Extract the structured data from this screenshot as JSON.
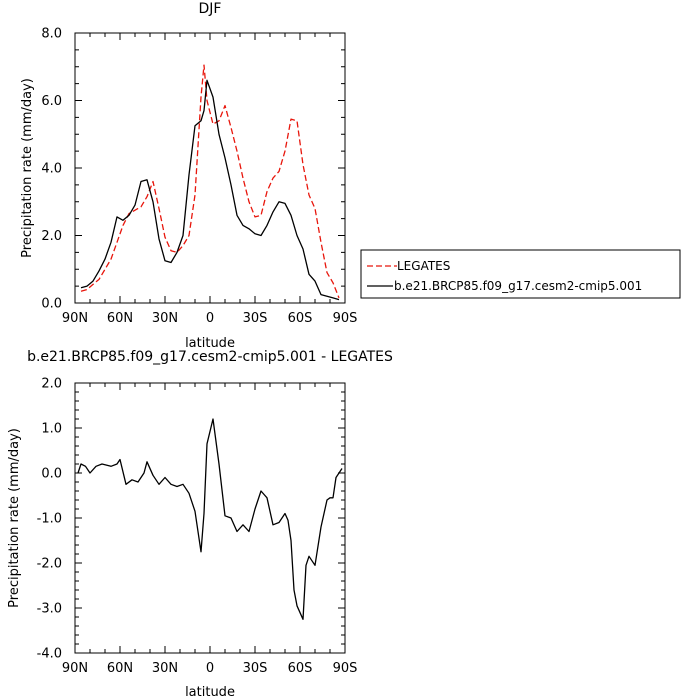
{
  "chart_data": [
    {
      "type": "line",
      "title": "DJF",
      "xlabel": "latitude",
      "ylabel": "Precipitation rate (mm/day)",
      "xlim": [
        90,
        -90
      ],
      "ylim": [
        0,
        8
      ],
      "x_ticks": [
        {
          "value": 90,
          "label": "90N"
        },
        {
          "value": 60,
          "label": "60N"
        },
        {
          "value": 30,
          "label": "30N"
        },
        {
          "value": 0,
          "label": "0"
        },
        {
          "value": -30,
          "label": "30S"
        },
        {
          "value": -60,
          "label": "60S"
        },
        {
          "value": -90,
          "label": "90S"
        }
      ],
      "y_ticks": [
        {
          "value": 0,
          "label": "0.0"
        },
        {
          "value": 2,
          "label": "2.0"
        },
        {
          "value": 4,
          "label": "4.0"
        },
        {
          "value": 6,
          "label": "6.0"
        },
        {
          "value": 8,
          "label": "8.0"
        }
      ],
      "legend_position": "right",
      "series": [
        {
          "name": "LEGATES",
          "color": "#e8160c",
          "dash": "dashed",
          "x": [
            86,
            82,
            78,
            74,
            70,
            66,
            62,
            58,
            54,
            50,
            46,
            42,
            38,
            34,
            30,
            26,
            22,
            18,
            14,
            10,
            6,
            4,
            2,
            -2,
            -6,
            -10,
            -14,
            -18,
            -22,
            -26,
            -30,
            -34,
            -38,
            -42,
            -46,
            -50,
            -54,
            -58,
            -62,
            -66,
            -70,
            -74,
            -78,
            -82,
            -86
          ],
          "y": [
            0.35,
            0.4,
            0.55,
            0.7,
            1.0,
            1.3,
            1.8,
            2.3,
            2.65,
            2.75,
            2.85,
            3.15,
            3.6,
            2.8,
            1.95,
            1.55,
            1.5,
            1.7,
            2.0,
            3.2,
            6.1,
            7.05,
            6.0,
            5.3,
            5.4,
            5.85,
            5.2,
            4.5,
            3.7,
            3.0,
            2.55,
            2.6,
            3.3,
            3.7,
            3.9,
            4.5,
            5.45,
            5.4,
            4.1,
            3.2,
            2.8,
            1.8,
            0.9,
            0.6,
            0.15
          ]
        },
        {
          "name": "b.e21.BRCP85.f09_g17.cesm2-cmip5.001",
          "color": "#000000",
          "dash": "solid",
          "x": [
            86,
            82,
            78,
            74,
            70,
            66,
            62,
            58,
            54,
            50,
            46,
            42,
            38,
            34,
            30,
            26,
            22,
            18,
            14,
            10,
            6,
            4,
            2,
            -2,
            -6,
            -10,
            -14,
            -18,
            -22,
            -26,
            -30,
            -34,
            -38,
            -42,
            -46,
            -50,
            -54,
            -58,
            -62,
            -66,
            -70,
            -74,
            -78,
            -82,
            -86
          ],
          "y": [
            0.45,
            0.5,
            0.65,
            0.95,
            1.3,
            1.8,
            2.55,
            2.45,
            2.6,
            2.9,
            3.6,
            3.65,
            3.0,
            1.9,
            1.25,
            1.2,
            1.5,
            2.0,
            3.8,
            5.25,
            5.4,
            5.7,
            6.6,
            6.1,
            5.0,
            4.3,
            3.5,
            2.6,
            2.3,
            2.2,
            2.05,
            2.0,
            2.3,
            2.7,
            3.0,
            2.95,
            2.6,
            2.0,
            1.6,
            0.85,
            0.65,
            0.25,
            0.2,
            0.15,
            0.1
          ]
        }
      ]
    },
    {
      "type": "line",
      "title": "b.e21.BRCP85.f09_g17.cesm2-cmip5.001 - LEGATES",
      "xlabel": "latitude",
      "ylabel": "Precipitation rate (mm/day)",
      "xlim": [
        90,
        -90
      ],
      "ylim": [
        -4,
        2
      ],
      "x_ticks": [
        {
          "value": 90,
          "label": "90N"
        },
        {
          "value": 60,
          "label": "60N"
        },
        {
          "value": 30,
          "label": "30N"
        },
        {
          "value": 0,
          "label": "0"
        },
        {
          "value": -30,
          "label": "30S"
        },
        {
          "value": -60,
          "label": "60S"
        },
        {
          "value": -90,
          "label": "90S"
        }
      ],
      "y_ticks": [
        {
          "value": -4,
          "label": "-4.0"
        },
        {
          "value": -3,
          "label": "-3.0"
        },
        {
          "value": -2,
          "label": "-2.0"
        },
        {
          "value": -1,
          "label": "-1.0"
        },
        {
          "value": 0,
          "label": "0.0"
        },
        {
          "value": 1,
          "label": "1.0"
        },
        {
          "value": 2,
          "label": "2.0"
        }
      ],
      "series": [
        {
          "color": "#000000",
          "dash": "solid",
          "x": [
            88,
            86,
            83,
            80,
            76,
            72,
            66,
            62,
            60,
            56,
            52,
            48,
            44,
            42,
            38,
            34,
            30,
            26,
            22,
            18,
            14,
            10,
            6,
            4,
            2,
            -2,
            -6,
            -10,
            -14,
            -18,
            -22,
            -26,
            -30,
            -34,
            -38,
            -42,
            -46,
            -50,
            -52,
            -54,
            -56,
            -58,
            -62,
            -64,
            -66,
            -70,
            -74,
            -78,
            -80,
            -82,
            -84,
            -86,
            -88
          ],
          "y": [
            0.0,
            0.2,
            0.15,
            0.0,
            0.15,
            0.2,
            0.15,
            0.2,
            0.3,
            -0.25,
            -0.15,
            -0.2,
            0.0,
            0.25,
            -0.05,
            -0.25,
            -0.1,
            -0.25,
            -0.3,
            -0.25,
            -0.45,
            -0.85,
            -1.75,
            -0.9,
            0.65,
            1.2,
            0.2,
            -0.95,
            -1.0,
            -1.3,
            -1.15,
            -1.3,
            -0.8,
            -0.4,
            -0.55,
            -1.15,
            -1.1,
            -0.9,
            -1.05,
            -1.5,
            -2.6,
            -2.95,
            -3.25,
            -2.05,
            -1.85,
            -2.05,
            -1.2,
            -0.6,
            -0.55,
            -0.55,
            -0.1,
            0.0,
            0.1
          ]
        }
      ]
    }
  ]
}
